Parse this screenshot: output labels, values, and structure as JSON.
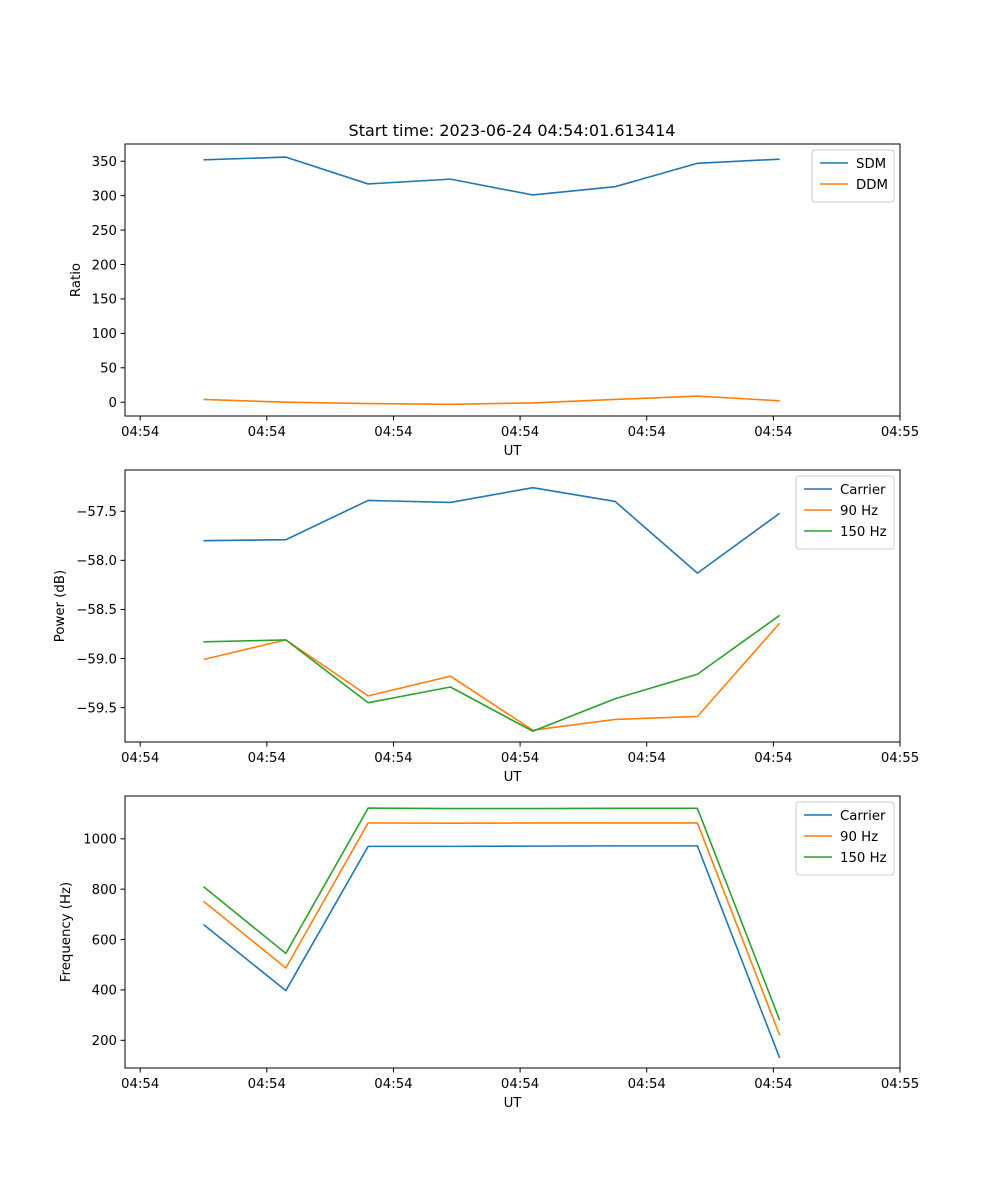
{
  "figure": {
    "title": "Start time: 2023-06-24 04:54:01.613414"
  },
  "colors": {
    "blue": "#1f77b4",
    "orange": "#ff7f0e",
    "green": "#2ca02c",
    "legend_border": "#cccccc"
  },
  "chart_data": [
    {
      "type": "line",
      "title": "Start time: 2023-06-24 04:54:01.613414",
      "xlabel": "UT",
      "ylabel": "Ratio",
      "x_tick_labels": [
        "04:54",
        "04:54",
        "04:54",
        "04:54",
        "04:54",
        "04:54",
        "04:55"
      ],
      "x": [
        0.5,
        1.15,
        1.8,
        2.45,
        3.1,
        3.75,
        4.4,
        5.05
      ],
      "xlim": [
        -0.12,
        6.0
      ],
      "x_ticks": [
        0,
        1,
        2,
        3,
        4,
        5,
        6
      ],
      "ylim": [
        -20,
        375
      ],
      "y_ticks": [
        0,
        50,
        100,
        150,
        200,
        250,
        300,
        350
      ],
      "y_tick_labels": [
        "0",
        "50",
        "100",
        "150",
        "200",
        "250",
        "300",
        "350"
      ],
      "legend_position": "upper right",
      "grid": false,
      "series": [
        {
          "name": "SDM",
          "color": "#1f77b4",
          "values": [
            352,
            356,
            317,
            324,
            301,
            313,
            347,
            353
          ]
        },
        {
          "name": "DDM",
          "color": "#ff7f0e",
          "values": [
            4,
            0,
            -2,
            -3,
            -1,
            4,
            9,
            2
          ]
        }
      ]
    },
    {
      "type": "line",
      "xlabel": "UT",
      "ylabel": "Power (dB)",
      "x_tick_labels": [
        "04:54",
        "04:54",
        "04:54",
        "04:54",
        "04:54",
        "04:54",
        "04:55"
      ],
      "x": [
        0.5,
        1.15,
        1.8,
        2.45,
        3.1,
        3.75,
        4.4,
        5.05
      ],
      "xlim": [
        -0.12,
        6.0
      ],
      "x_ticks": [
        0,
        1,
        2,
        3,
        4,
        5,
        6
      ],
      "ylim": [
        -59.85,
        -57.08
      ],
      "y_ticks": [
        -59.5,
        -59.0,
        -58.5,
        -58.0,
        -57.5
      ],
      "y_tick_labels": [
        "−59.5",
        "−59.0",
        "−58.5",
        "−58.0",
        "−57.5"
      ],
      "legend_position": "upper right",
      "grid": false,
      "series": [
        {
          "name": "Carrier",
          "color": "#1f77b4",
          "values": [
            -57.8,
            -57.79,
            -57.39,
            -57.41,
            -57.26,
            -57.4,
            -58.13,
            -57.52
          ]
        },
        {
          "name": "90 Hz",
          "color": "#ff7f0e",
          "values": [
            -59.01,
            -58.81,
            -59.38,
            -59.18,
            -59.73,
            -59.62,
            -59.59,
            -58.64
          ]
        },
        {
          "name": "150 Hz",
          "color": "#2ca02c",
          "values": [
            -58.83,
            -58.81,
            -59.45,
            -59.29,
            -59.74,
            -59.41,
            -59.16,
            -58.56
          ]
        }
      ]
    },
    {
      "type": "line",
      "xlabel": "UT",
      "ylabel": "Frequency (Hz)",
      "x_tick_labels": [
        "04:54",
        "04:54",
        "04:54",
        "04:54",
        "04:54",
        "04:54",
        "04:55"
      ],
      "x": [
        0.5,
        1.15,
        1.8,
        2.45,
        3.1,
        3.75,
        4.4,
        5.05
      ],
      "xlim": [
        -0.12,
        6.0
      ],
      "x_ticks": [
        0,
        1,
        2,
        3,
        4,
        5,
        6
      ],
      "ylim": [
        90,
        1170
      ],
      "y_ticks": [
        200,
        400,
        600,
        800,
        1000
      ],
      "y_tick_labels": [
        "200",
        "400",
        "600",
        "800",
        "1000"
      ],
      "legend_position": "upper right",
      "grid": false,
      "series": [
        {
          "name": "Carrier",
          "color": "#1f77b4",
          "values": [
            660,
            397,
            970,
            970,
            971,
            972,
            972,
            130
          ]
        },
        {
          "name": "90 Hz",
          "color": "#ff7f0e",
          "values": [
            752,
            487,
            1063,
            1062,
            1063,
            1063,
            1063,
            220
          ]
        },
        {
          "name": "150 Hz",
          "color": "#2ca02c",
          "values": [
            810,
            545,
            1122,
            1120,
            1120,
            1121,
            1121,
            280
          ]
        }
      ]
    }
  ]
}
